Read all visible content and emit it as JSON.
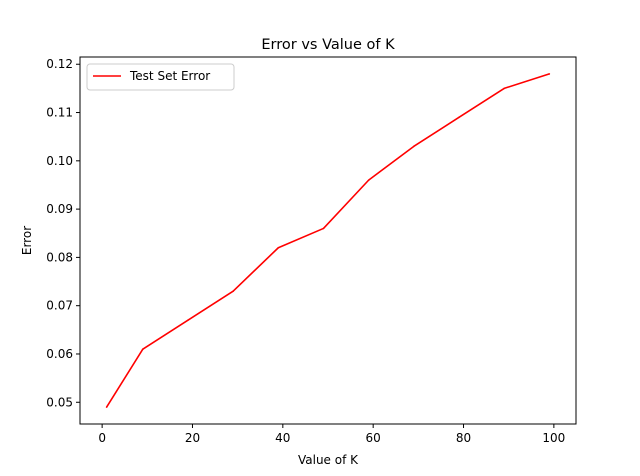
{
  "chart_data": {
    "type": "line",
    "title": "Error vs Value of K",
    "xlabel": "Value of K",
    "ylabel": "Error",
    "xlim": [
      -4.9,
      104.9
    ],
    "ylim": [
      0.0455,
      0.1215
    ],
    "xticks": [
      0,
      20,
      40,
      60,
      80,
      100
    ],
    "yticks": [
      0.05,
      0.06,
      0.07,
      0.08,
      0.09,
      0.1,
      0.11,
      0.12
    ],
    "ytick_labels": [
      "0.05",
      "0.06",
      "0.07",
      "0.08",
      "0.09",
      "0.10",
      "0.11",
      "0.12"
    ],
    "grid": false,
    "legend": "top-left",
    "series": [
      {
        "name": "Test Set Error",
        "color": "#ff0000",
        "x": [
          1,
          9,
          19,
          29,
          39,
          49,
          59,
          69,
          79,
          89,
          99
        ],
        "y": [
          0.049,
          0.061,
          0.067,
          0.073,
          0.082,
          0.086,
          0.096,
          0.103,
          0.109,
          0.115,
          0.118
        ]
      }
    ]
  }
}
